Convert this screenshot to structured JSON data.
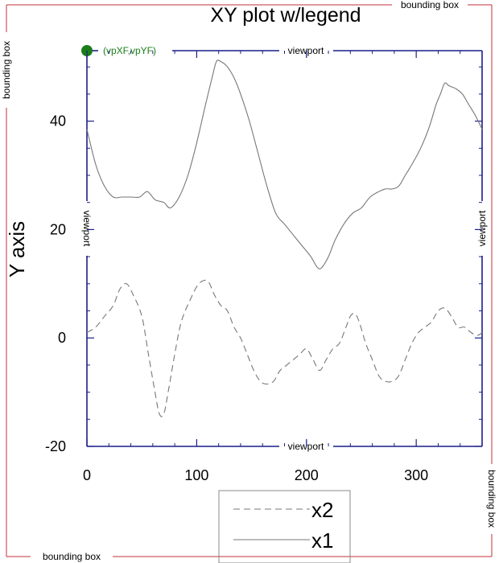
{
  "chart_data": {
    "type": "line",
    "title": "XY plot w/legend",
    "ylabel": "Y axis",
    "xlabel": "",
    "xlim": [
      0,
      360
    ],
    "ylim": [
      -20,
      53
    ],
    "x_ticks": [
      0,
      100,
      200,
      300
    ],
    "y_ticks": [
      -20,
      0,
      20,
      40
    ],
    "grid": false,
    "legend_placement": "bottom-center",
    "series": [
      {
        "name": "x1",
        "style": "solid",
        "color": "#777777",
        "x": [
          0,
          8,
          16,
          24,
          32,
          40,
          48,
          55,
          62,
          70,
          76,
          84,
          92,
          100,
          108,
          114,
          118,
          122,
          128,
          134,
          140,
          148,
          156,
          164,
          172,
          180,
          188,
          196,
          204,
          210,
          214,
          220,
          226,
          234,
          242,
          250,
          258,
          266,
          272,
          278,
          284,
          290,
          296,
          304,
          312,
          318,
          322,
          326,
          330,
          336,
          342,
          348,
          354,
          360
        ],
        "values": [
          38.5,
          32,
          28,
          26,
          26,
          26,
          26,
          27,
          25.5,
          25,
          24,
          26,
          30,
          36,
          43,
          48,
          51,
          51,
          50,
          48,
          45,
          40,
          34,
          28,
          23,
          21,
          19,
          17,
          15,
          13,
          13,
          15,
          18,
          21,
          23,
          24,
          26,
          27,
          27.5,
          27.5,
          28,
          30,
          32,
          35,
          39,
          43,
          45,
          47,
          46.5,
          46,
          45,
          43,
          41,
          38.5
        ]
      },
      {
        "name": "x2",
        "style": "dashed",
        "color": "#777777",
        "x": [
          0,
          8,
          16,
          24,
          30,
          36,
          42,
          50,
          56,
          62,
          66,
          70,
          74,
          80,
          86,
          94,
          102,
          110,
          116,
          122,
          128,
          134,
          140,
          146,
          152,
          158,
          164,
          170,
          176,
          182,
          188,
          194,
          200,
          206,
          212,
          218,
          224,
          230,
          236,
          240,
          244,
          248,
          254,
          260,
          266,
          272,
          278,
          284,
          290,
          296,
          302,
          308,
          314,
          320,
          326,
          332,
          338,
          344,
          350,
          356,
          360
        ],
        "values": [
          1,
          2,
          4,
          6,
          9,
          10,
          8,
          4,
          -3,
          -10,
          -14,
          -14,
          -10,
          -3,
          3,
          7,
          10,
          10.5,
          8,
          6,
          5,
          2,
          0,
          -3,
          -6,
          -8,
          -8.5,
          -8,
          -6,
          -5,
          -4,
          -3,
          -2,
          -4,
          -6,
          -4,
          -2,
          -1,
          2,
          4,
          4.5,
          3,
          -1,
          -4,
          -7,
          -8,
          -8,
          -7,
          -4,
          -1,
          1,
          2,
          3,
          5,
          5.5,
          4,
          2,
          2,
          1,
          0.5,
          1
        ]
      }
    ],
    "legend": [
      {
        "label": "x2",
        "style": "dashed"
      },
      {
        "label": "x1",
        "style": "solid"
      }
    ],
    "annotations": {
      "viewport": "viewport",
      "bounding_box": "bounding box",
      "corner_point": "(vpXF,vpYF)"
    },
    "colors": {
      "viewport_frame": "#1a1f8a",
      "bounding_frame": "#c0303a",
      "corner_point": "#1a7d1a",
      "lines": "#777777"
    }
  }
}
